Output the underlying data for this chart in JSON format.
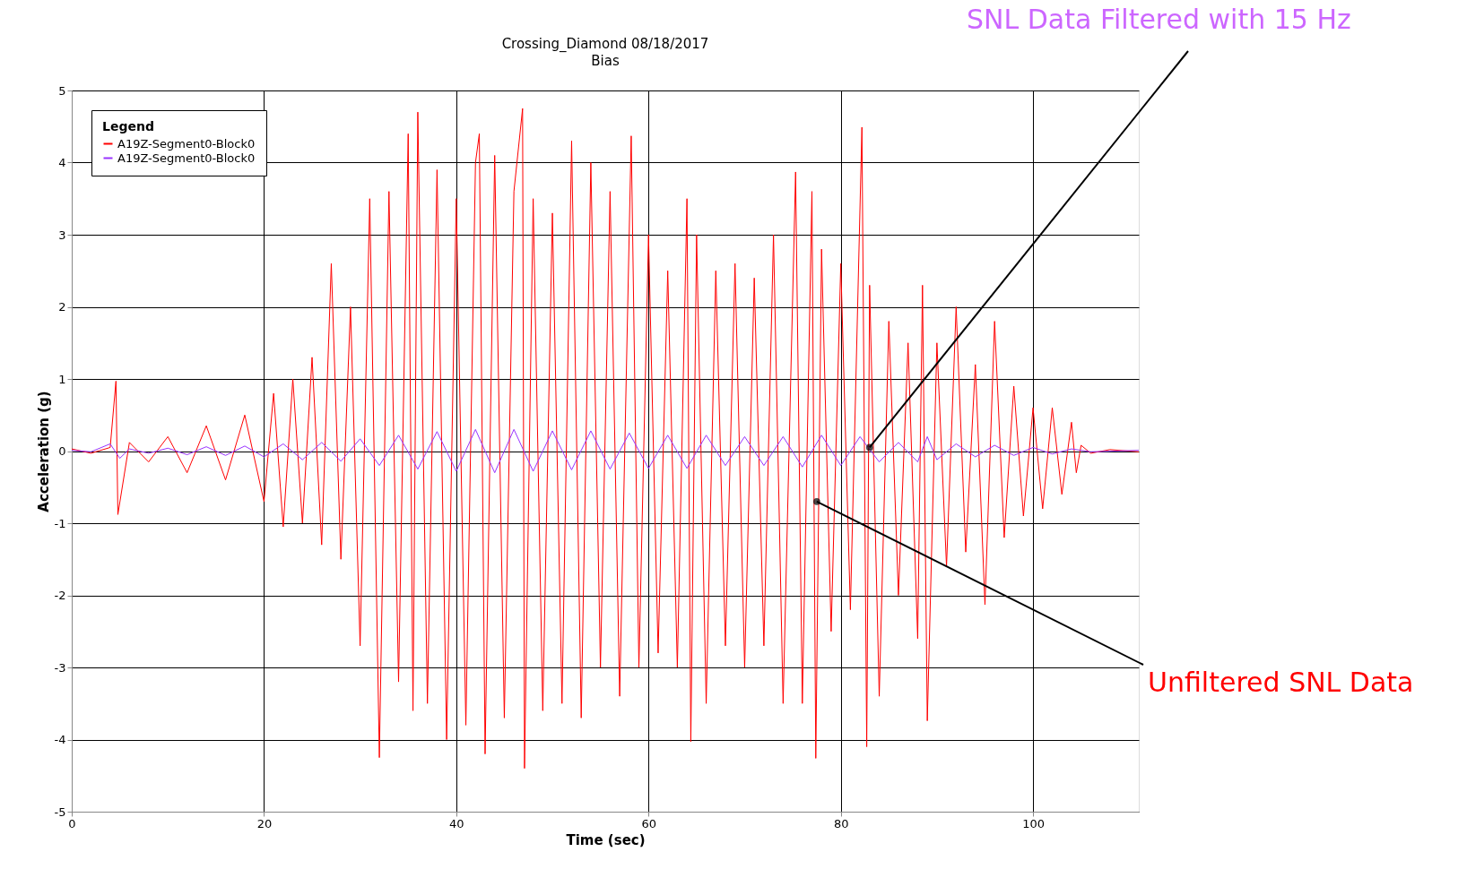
{
  "chart_data": {
    "type": "line",
    "title": "Crossing_Diamond 08/18/2017",
    "subtitle": "Bias",
    "xlabel": "Time (sec)",
    "ylabel": "Acceleration (g)",
    "legend_title": "Legend",
    "legend": "top left",
    "grid": true,
    "line_style": "solid",
    "marker": "none",
    "xlim": [
      0,
      111
    ],
    "xticks": [
      0,
      20,
      40,
      60,
      80,
      100
    ],
    "ylim": [
      -5,
      5
    ],
    "yticks": [
      -5,
      -4,
      -3,
      -2,
      -1,
      0,
      1,
      2,
      3,
      4,
      5
    ],
    "series": [
      {
        "name": "A19Z-Segment0-Block0",
        "color": "#ff0000",
        "x": [
          0,
          2,
          4,
          4.6,
          4.8,
          6,
          8,
          10,
          12,
          14,
          16,
          18,
          20,
          21,
          22,
          23,
          24,
          25,
          26,
          27,
          28,
          29,
          30,
          31,
          32,
          33,
          34,
          35,
          35.5,
          36,
          37,
          38,
          39,
          40,
          41,
          42,
          42.4,
          43,
          44,
          45,
          46,
          46.9,
          47.1,
          48,
          49,
          50,
          51,
          52,
          53,
          54,
          55,
          56,
          57,
          58.2,
          59,
          60,
          61,
          62,
          63,
          64,
          64.4,
          65,
          66,
          67,
          68,
          69,
          70,
          71,
          72,
          73,
          74,
          75.3,
          76,
          77,
          77.4,
          78,
          79,
          80,
          81,
          82.2,
          82.7,
          83,
          84,
          85,
          86,
          87,
          88,
          88.5,
          89,
          90,
          91,
          92,
          93,
          94,
          95,
          96,
          97,
          98,
          99,
          100,
          101,
          102,
          103,
          104,
          104.5,
          105,
          106,
          108,
          111
        ],
        "values": [
          0.03,
          -0.03,
          0.05,
          0.97,
          -0.88,
          0.12,
          -0.15,
          0.2,
          -0.3,
          0.35,
          -0.4,
          0.5,
          -0.7,
          0.8,
          -1.05,
          1.0,
          -1.0,
          1.3,
          -1.3,
          2.6,
          -1.5,
          2.0,
          -2.7,
          3.5,
          -4.25,
          3.6,
          -3.2,
          4.4,
          -3.6,
          4.7,
          -3.5,
          3.9,
          -4.0,
          3.5,
          -3.8,
          4.0,
          4.4,
          -4.2,
          4.1,
          -3.7,
          3.6,
          4.75,
          -4.4,
          3.5,
          -3.6,
          3.3,
          -3.5,
          4.3,
          -3.7,
          4.0,
          -3.0,
          3.6,
          -3.4,
          4.37,
          -3.0,
          3.0,
          -2.8,
          2.5,
          -3.0,
          3.5,
          -4.03,
          3.0,
          -3.5,
          2.5,
          -2.7,
          2.6,
          -3.0,
          2.4,
          -2.7,
          3.0,
          -3.5,
          3.87,
          -3.5,
          3.6,
          -4.26,
          2.8,
          -2.5,
          2.6,
          -2.2,
          4.49,
          -4.1,
          2.3,
          -3.4,
          1.8,
          -2.0,
          1.5,
          -2.6,
          2.3,
          -3.74,
          1.5,
          -1.6,
          2.0,
          -1.4,
          1.2,
          -2.13,
          1.8,
          -1.2,
          0.9,
          -0.9,
          0.6,
          -0.8,
          0.6,
          -0.6,
          0.4,
          -0.3,
          0.08,
          -0.03,
          0.02,
          -0.01
        ]
      },
      {
        "name": "A19Z-Segment0-Block0",
        "color": "#9933ff",
        "x": [
          0,
          2,
          4,
          5,
          6,
          8,
          10,
          12,
          14,
          16,
          18,
          20,
          22,
          24,
          26,
          28,
          30,
          32,
          34,
          36,
          38,
          40,
          42,
          44,
          46,
          48,
          50,
          52,
          54,
          56,
          58,
          60,
          62,
          64,
          66,
          68,
          70,
          72,
          74,
          76,
          78,
          80,
          82,
          84,
          86,
          88,
          89,
          90,
          92,
          94,
          96,
          98,
          100,
          102,
          104,
          106,
          111
        ],
        "values": [
          0.01,
          -0.01,
          0.1,
          -0.1,
          0.03,
          -0.03,
          0.04,
          -0.05,
          0.06,
          -0.06,
          0.07,
          -0.08,
          0.1,
          -0.12,
          0.12,
          -0.14,
          0.17,
          -0.2,
          0.22,
          -0.25,
          0.27,
          -0.28,
          0.3,
          -0.3,
          0.3,
          -0.28,
          0.28,
          -0.26,
          0.28,
          -0.25,
          0.25,
          -0.24,
          0.22,
          -0.24,
          0.22,
          -0.2,
          0.2,
          -0.2,
          0.2,
          -0.22,
          0.22,
          -0.2,
          0.2,
          -0.15,
          0.12,
          -0.15,
          0.2,
          -0.12,
          0.1,
          -0.08,
          0.08,
          -0.06,
          0.05,
          -0.04,
          0.03,
          -0.01,
          0.01
        ]
      }
    ],
    "annotations": [
      {
        "text": "SNL Data Filtered with 15 Hz",
        "x": 83,
        "y": 0.05
      },
      {
        "text": "Unfiltered SNL Data",
        "x": 77.5,
        "y": -0.7
      }
    ]
  }
}
